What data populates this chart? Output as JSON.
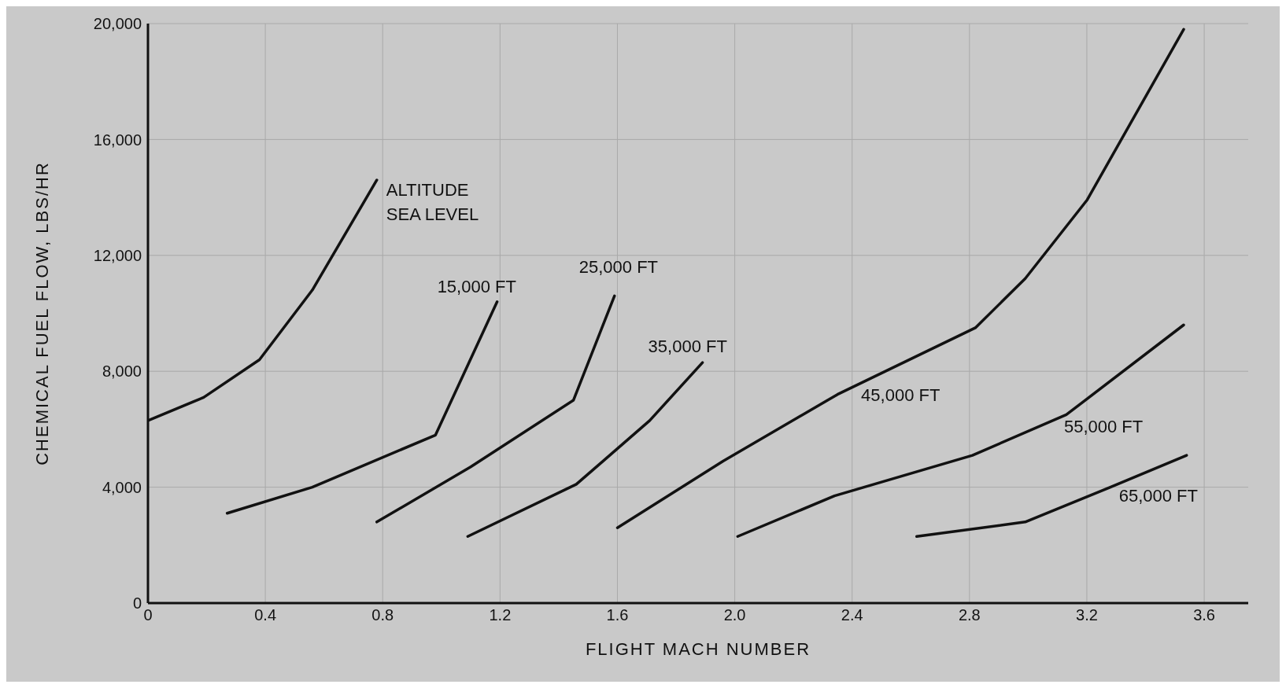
{
  "chart_data": {
    "type": "line",
    "xlabel": "FLIGHT MACH NUMBER",
    "ylabel": "CHEMICAL FUEL FLOW, LBS/HR",
    "xlim": [
      0,
      3.75
    ],
    "xticks": [
      0,
      0.4,
      0.8,
      1.2,
      1.6,
      {
        "value": 2,
        "label": "2.0"
      },
      2.4,
      2.8,
      3.2,
      3.6
    ],
    "ylim": [
      0,
      20000
    ],
    "yticks": [
      0,
      {
        "value": 4000,
        "label": "4,000"
      },
      {
        "value": 8000,
        "label": "8,000"
      },
      {
        "value": 12000,
        "label": "12,000"
      },
      {
        "value": 16000,
        "label": "16,000"
      },
      {
        "value": 20000,
        "label": "20,000"
      }
    ],
    "grid": true,
    "marker": "none",
    "line_style": "solid",
    "series": [
      {
        "name": "ALTITUDE SEA LEVEL",
        "color": "#111111",
        "x": [
          0,
          0.19,
          0.38,
          0.56,
          0.78
        ],
        "values": [
          6300,
          7100,
          8400,
          10800,
          14600
        ]
      },
      {
        "name": "15,000 FT",
        "color": "#111111",
        "x": [
          0.27,
          0.56,
          0.98,
          1.19
        ],
        "values": [
          3100,
          4000,
          5800,
          10400
        ]
      },
      {
        "name": "25,000 FT",
        "color": "#111111",
        "x": [
          0.78,
          1.1,
          1.45,
          1.59
        ],
        "values": [
          2800,
          4700,
          7000,
          10600
        ]
      },
      {
        "name": "35,000 FT",
        "color": "#111111",
        "x": [
          1.09,
          1.46,
          1.71,
          1.89
        ],
        "values": [
          2300,
          4100,
          6300,
          8300
        ]
      },
      {
        "name": "45,000 FT",
        "color": "#111111",
        "x": [
          1.6,
          1.96,
          2.35,
          2.82,
          2.99,
          3.2,
          3.53
        ],
        "values": [
          2600,
          4900,
          7200,
          9500,
          11200,
          13900,
          19800
        ]
      },
      {
        "name": "55,000 FT",
        "color": "#111111",
        "x": [
          2.01,
          2.34,
          2.81,
          3.13,
          3.53
        ],
        "values": [
          2300,
          3700,
          5100,
          6500,
          9600
        ]
      },
      {
        "name": "65,000 FT",
        "color": "#111111",
        "x": [
          2.62,
          2.99,
          3.28,
          3.54
        ],
        "values": [
          2300,
          2800,
          4000,
          5100
        ]
      }
    ]
  }
}
